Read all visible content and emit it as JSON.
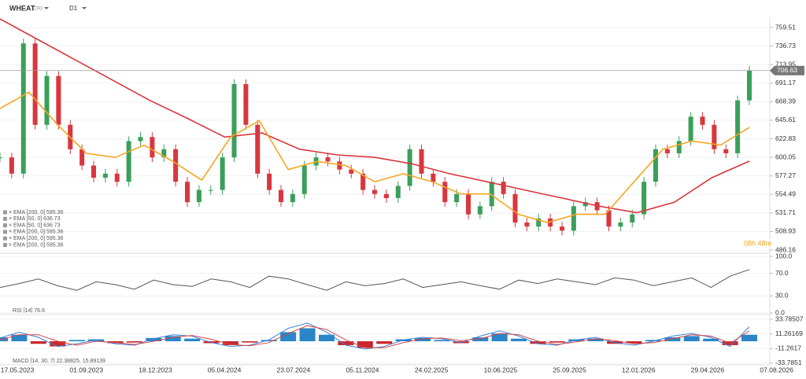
{
  "header": {
    "symbol": "WHEAT",
    "symbol_suffix": "CFD",
    "timeframe": "D1"
  },
  "price_pane": {
    "ylim": [
      482.3,
      772.07
    ],
    "yticks": [
      759.51,
      736.73,
      713.95,
      691.17,
      668.39,
      645.61,
      622.83,
      600.05,
      577.27,
      554.49,
      531.71,
      508.93,
      486.16
    ],
    "last_price": 706.63,
    "countdown": "08h 48m",
    "close": [
      600,
      580,
      740,
      640,
      700,
      640,
      610,
      590,
      575,
      580,
      570,
      620,
      625,
      600,
      610,
      570,
      545,
      560,
      560,
      600,
      690,
      640,
      580,
      560,
      545,
      555,
      590,
      600,
      595,
      585,
      580,
      560,
      555,
      550,
      565,
      610,
      580,
      570,
      545,
      555,
      530,
      540,
      570,
      555,
      520,
      515,
      525,
      515,
      510,
      540,
      545,
      535,
      515,
      520,
      530,
      570,
      610,
      605,
      620,
      650,
      640,
      610,
      605,
      670,
      706.63
    ],
    "ema_200": {
      "color": "#d9363e",
      "values": [
        770,
        745,
        720,
        695,
        670,
        648,
        625,
        630,
        610,
        603,
        600,
        592,
        580,
        570,
        560,
        550,
        540,
        532,
        545,
        575,
        595.36
      ]
    },
    "ema_50": {
      "color": "#f5a623",
      "values": [
        660,
        680,
        640,
        605,
        600,
        615,
        595,
        572,
        625,
        645,
        585,
        595,
        590,
        570,
        580,
        570,
        555,
        555,
        530,
        520,
        530,
        530,
        570,
        610,
        620,
        615,
        636.73
      ]
    },
    "legend": [
      "EMA [200, 0] 595.36",
      "EMA [50, 0] 636.73",
      "EMA [50, 0] 636.73",
      "EMA [200, 0] 595.36",
      "EMA [200, 0] 595.36",
      "EMA [200, 0] 595.36"
    ]
  },
  "rsi_pane": {
    "label": "RSI [14] 76.6",
    "ylim": [
      0,
      100
    ],
    "yticks": [
      {
        "value": 100,
        "label": "100.0"
      },
      {
        "value": 70,
        "label": "70.0"
      },
      {
        "value": 30,
        "label": "30.0"
      },
      {
        "value": 0,
        "label": "0.0"
      }
    ],
    "values": [
      45,
      52,
      60,
      48,
      40,
      55,
      50,
      42,
      58,
      50,
      47,
      60,
      55,
      45,
      65,
      60,
      50,
      40,
      55,
      48,
      52,
      60,
      45,
      50,
      55,
      48,
      42,
      58,
      52,
      60,
      55,
      50,
      62,
      58,
      48,
      55,
      62,
      45,
      65,
      76.6
    ]
  },
  "macd_pane": {
    "label": "MACD [14, 30, 7] 22.38825, 15.89139",
    "ylim": [
      -36.3,
      36.3
    ],
    "yticks": [
      33.78507,
      11.26169,
      -11.2617,
      -33.7851
    ],
    "histogram": [
      6,
      10,
      -4,
      -8,
      2,
      3,
      -3,
      -2,
      5,
      8,
      4,
      -3,
      -6,
      -2,
      2,
      14,
      20,
      10,
      -6,
      -10,
      -4,
      3,
      5,
      2,
      -3,
      6,
      12,
      4,
      -4,
      -2,
      3,
      4,
      -4,
      -3,
      2,
      6,
      8,
      4,
      -6,
      10
    ],
    "macd": [
      5,
      14,
      6,
      -8,
      -4,
      2,
      -4,
      -6,
      4,
      10,
      8,
      -2,
      -8,
      -6,
      2,
      20,
      28,
      14,
      -6,
      -12,
      -8,
      2,
      6,
      4,
      -2,
      8,
      16,
      8,
      -4,
      -6,
      2,
      6,
      -2,
      -6,
      0,
      8,
      12,
      6,
      -8,
      22.38825
    ],
    "signal": [
      2,
      10,
      10,
      0,
      -6,
      0,
      -2,
      -5,
      0,
      6,
      9,
      3,
      -5,
      -7,
      -2,
      12,
      24,
      18,
      2,
      -10,
      -10,
      -2,
      4,
      5,
      1,
      4,
      12,
      10,
      0,
      -5,
      -1,
      4,
      1,
      -4,
      -2,
      4,
      10,
      8,
      -3,
      15.89139
    ]
  },
  "x_axis": {
    "labels": [
      "17.05.2023",
      "01.09.2023",
      "18.12.2023",
      "05.04.2024",
      "23.07.2024",
      "05.11.2024",
      "24.02.2025",
      "10.06.2025",
      "25.09.2025",
      "12.01.2026",
      "29.04.2026",
      "07.08.2026"
    ]
  }
}
